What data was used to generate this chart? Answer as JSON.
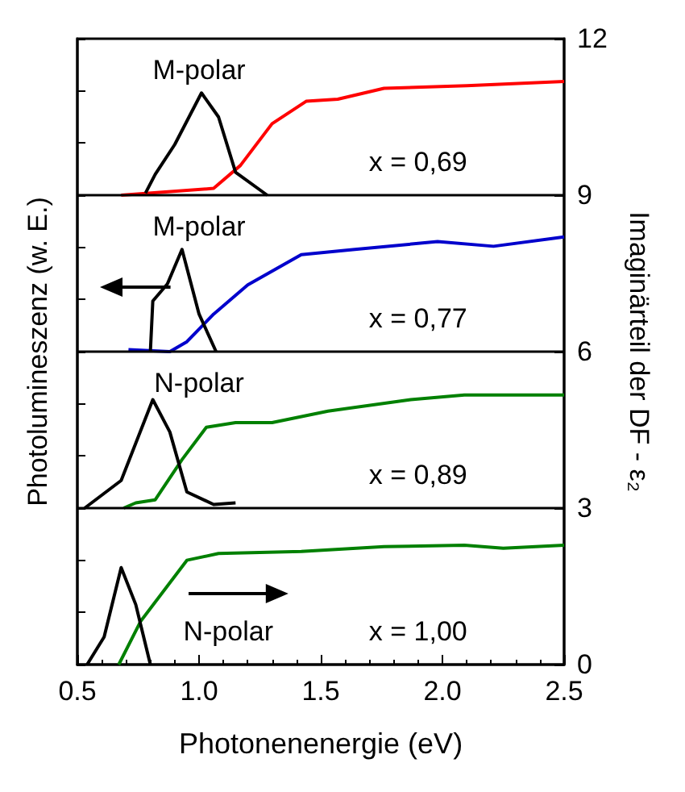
{
  "chart_data": {
    "type": "line",
    "xlabel": "Photonenenergie (eV)",
    "ylabel": "Photolumineszenz (w. E.)",
    "y2label": "Imaginärteil der DF - ε₂",
    "xlim": [
      0.5,
      2.5
    ],
    "xticks": [
      0.5,
      {
        "value": 1,
        "label": "1.0"
      },
      1.5,
      {
        "value": 2,
        "label": "2.0"
      },
      2.5
    ],
    "y2lim": [
      0,
      12
    ],
    "y2ticks": [
      0,
      3,
      6,
      9,
      12
    ],
    "grid": false,
    "marker": "none",
    "line_style": "solid",
    "series": [
      {
        "color": "#ff0000",
        "axis": "y2",
        "x": [
          0.68,
          1.06,
          1.17,
          1.3,
          1.44,
          1.57,
          1.76,
          2.1,
          2.5
        ],
        "values": [
          9.0,
          9.13,
          9.57,
          10.37,
          10.8,
          10.84,
          11.05,
          11.1,
          11.18
        ]
      },
      {
        "color": "#000000",
        "axis": "y2",
        "x": [
          0.78,
          0.82,
          0.9,
          1.01,
          1.08,
          1.15,
          1.28
        ],
        "values": [
          9.04,
          9.4,
          9.97,
          10.96,
          10.5,
          9.44,
          9.0
        ]
      },
      {
        "color": "#0000cc",
        "axis": "y2",
        "x": [
          0.71,
          0.88,
          0.95,
          1.06,
          1.2,
          1.42,
          1.64,
          1.98,
          2.21,
          2.5
        ],
        "values": [
          6.04,
          6.0,
          6.19,
          6.72,
          7.28,
          7.86,
          7.96,
          8.11,
          8.02,
          8.2
        ]
      },
      {
        "color": "#000000",
        "axis": "y2",
        "x": [
          0.8,
          0.81,
          0.87,
          0.93,
          1.0,
          1.07
        ],
        "values": [
          6.0,
          6.97,
          7.3,
          7.96,
          6.72,
          6.0
        ]
      },
      {
        "color": "#008000",
        "axis": "y2",
        "x": [
          0.69,
          0.74,
          0.82,
          0.93,
          1.03,
          1.15,
          1.3,
          1.53,
          1.87,
          2.09,
          2.5
        ],
        "values": [
          3.0,
          3.1,
          3.16,
          3.93,
          4.55,
          4.64,
          4.64,
          4.86,
          5.08,
          5.17,
          5.17
        ]
      },
      {
        "color": "#000000",
        "axis": "y2",
        "x": [
          0.53,
          0.68,
          0.81,
          0.88,
          0.95,
          1.06,
          1.15
        ],
        "values": [
          3.0,
          3.53,
          5.08,
          4.46,
          3.31,
          3.07,
          3.1
        ]
      },
      {
        "color": "#008000",
        "axis": "y2",
        "x": [
          0.67,
          0.76,
          0.95,
          1.08,
          1.42,
          1.76,
          2.09,
          2.25,
          2.5
        ],
        "values": [
          0.0,
          0.83,
          2.0,
          2.13,
          2.17,
          2.26,
          2.29,
          2.23,
          2.29
        ]
      },
      {
        "color": "#000000",
        "axis": "y2",
        "x": [
          0.54,
          0.61,
          0.68,
          0.74,
          0.8
        ],
        "values": [
          0.0,
          0.53,
          1.86,
          1.15,
          0.0
        ]
      }
    ],
    "ref_lines": [
      {
        "axis": "y2",
        "value": 3,
        "color": "#000000"
      },
      {
        "axis": "y2",
        "value": 6,
        "color": "#000000"
      },
      {
        "axis": "y2",
        "value": 9,
        "color": "#000000"
      }
    ],
    "annotations": [
      "M-polar",
      "x = 0,69",
      "M-polar",
      "x = 0,77",
      "N-polar",
      "x = 0,89",
      "N-polar",
      "x = 1,00"
    ]
  }
}
